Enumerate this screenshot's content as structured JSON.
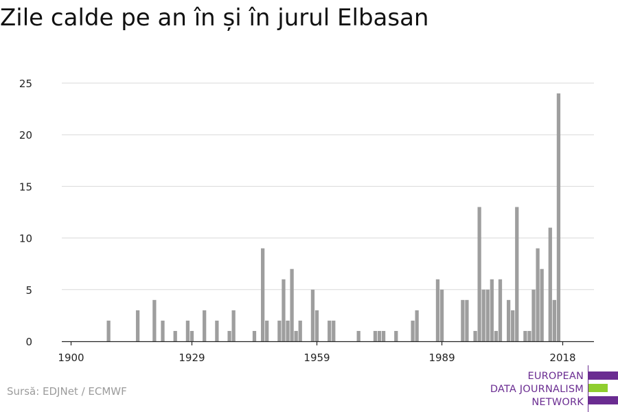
{
  "title": "Zile calde pe an în și în jurul Elbasan",
  "source": "Sursă: EDJNet / ECMWF",
  "logo": {
    "lines": [
      "EUROPEAN",
      "DATA JOURNALISM",
      "NETWORK"
    ],
    "colors": {
      "purple": "#6a2c91",
      "green": "#8fce2e"
    }
  },
  "colors": {
    "bar": "#9e9e9e",
    "grid": "#d9d9d9",
    "axis": "#222222",
    "text": "#222222"
  },
  "chart_data": {
    "type": "bar",
    "title": "Zile calde pe an în și în jurul Elbasan",
    "xlabel": "",
    "ylabel": "",
    "xlim": [
      1900,
      2018
    ],
    "ylim": [
      0,
      25
    ],
    "yticks": [
      0,
      5,
      10,
      15,
      20,
      25
    ],
    "xticks": [
      1900,
      1929,
      1959,
      1989,
      2018
    ],
    "grid": "horizontal",
    "x": [
      1909,
      1916,
      1920,
      1922,
      1925,
      1928,
      1929,
      1932,
      1935,
      1938,
      1939,
      1944,
      1946,
      1947,
      1950,
      1951,
      1952,
      1953,
      1954,
      1955,
      1958,
      1959,
      1962,
      1963,
      1969,
      1973,
      1974,
      1975,
      1978,
      1982,
      1983,
      1988,
      1989,
      1994,
      1995,
      1997,
      1998,
      1999,
      2000,
      2001,
      2002,
      2003,
      2004,
      2005,
      2006,
      2007,
      2008,
      2009,
      2010,
      2011,
      2012,
      2013,
      2014,
      2015,
      2016,
      2017
    ],
    "values": [
      2,
      3,
      4,
      2,
      1,
      2,
      1,
      3,
      2,
      1,
      3,
      1,
      9,
      2,
      2,
      6,
      2,
      7,
      1,
      2,
      5,
      3,
      2,
      2,
      1,
      1,
      1,
      1,
      1,
      2,
      3,
      6,
      5,
      4,
      4,
      1,
      13,
      5,
      5,
      6,
      1,
      6,
      0,
      4,
      3,
      13,
      0,
      1,
      1,
      5,
      9,
      7,
      0,
      11,
      4,
      24
    ]
  }
}
